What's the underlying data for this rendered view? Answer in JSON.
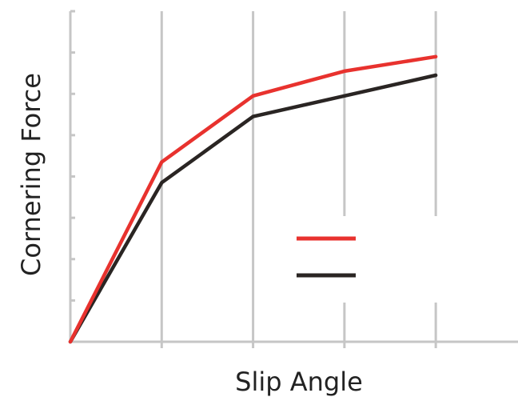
{
  "chart_data": {
    "type": "line",
    "title": "",
    "xlabel": "Slip Angle",
    "ylabel": "Cornering Force",
    "x": [
      0,
      1,
      2,
      3,
      4
    ],
    "xlim": [
      0,
      4.9
    ],
    "ylim": [
      0,
      8
    ],
    "y_minor_ticks": 8,
    "grid": "vertical",
    "legend": {
      "placement": "center-right",
      "labels_shown": false
    },
    "series": [
      {
        "color": "#e8322e",
        "values": [
          0,
          4.35,
          5.95,
          6.55,
          6.9
        ]
      },
      {
        "color": "#2a2523",
        "values": [
          0,
          3.85,
          5.45,
          5.95,
          6.45
        ]
      }
    ]
  }
}
